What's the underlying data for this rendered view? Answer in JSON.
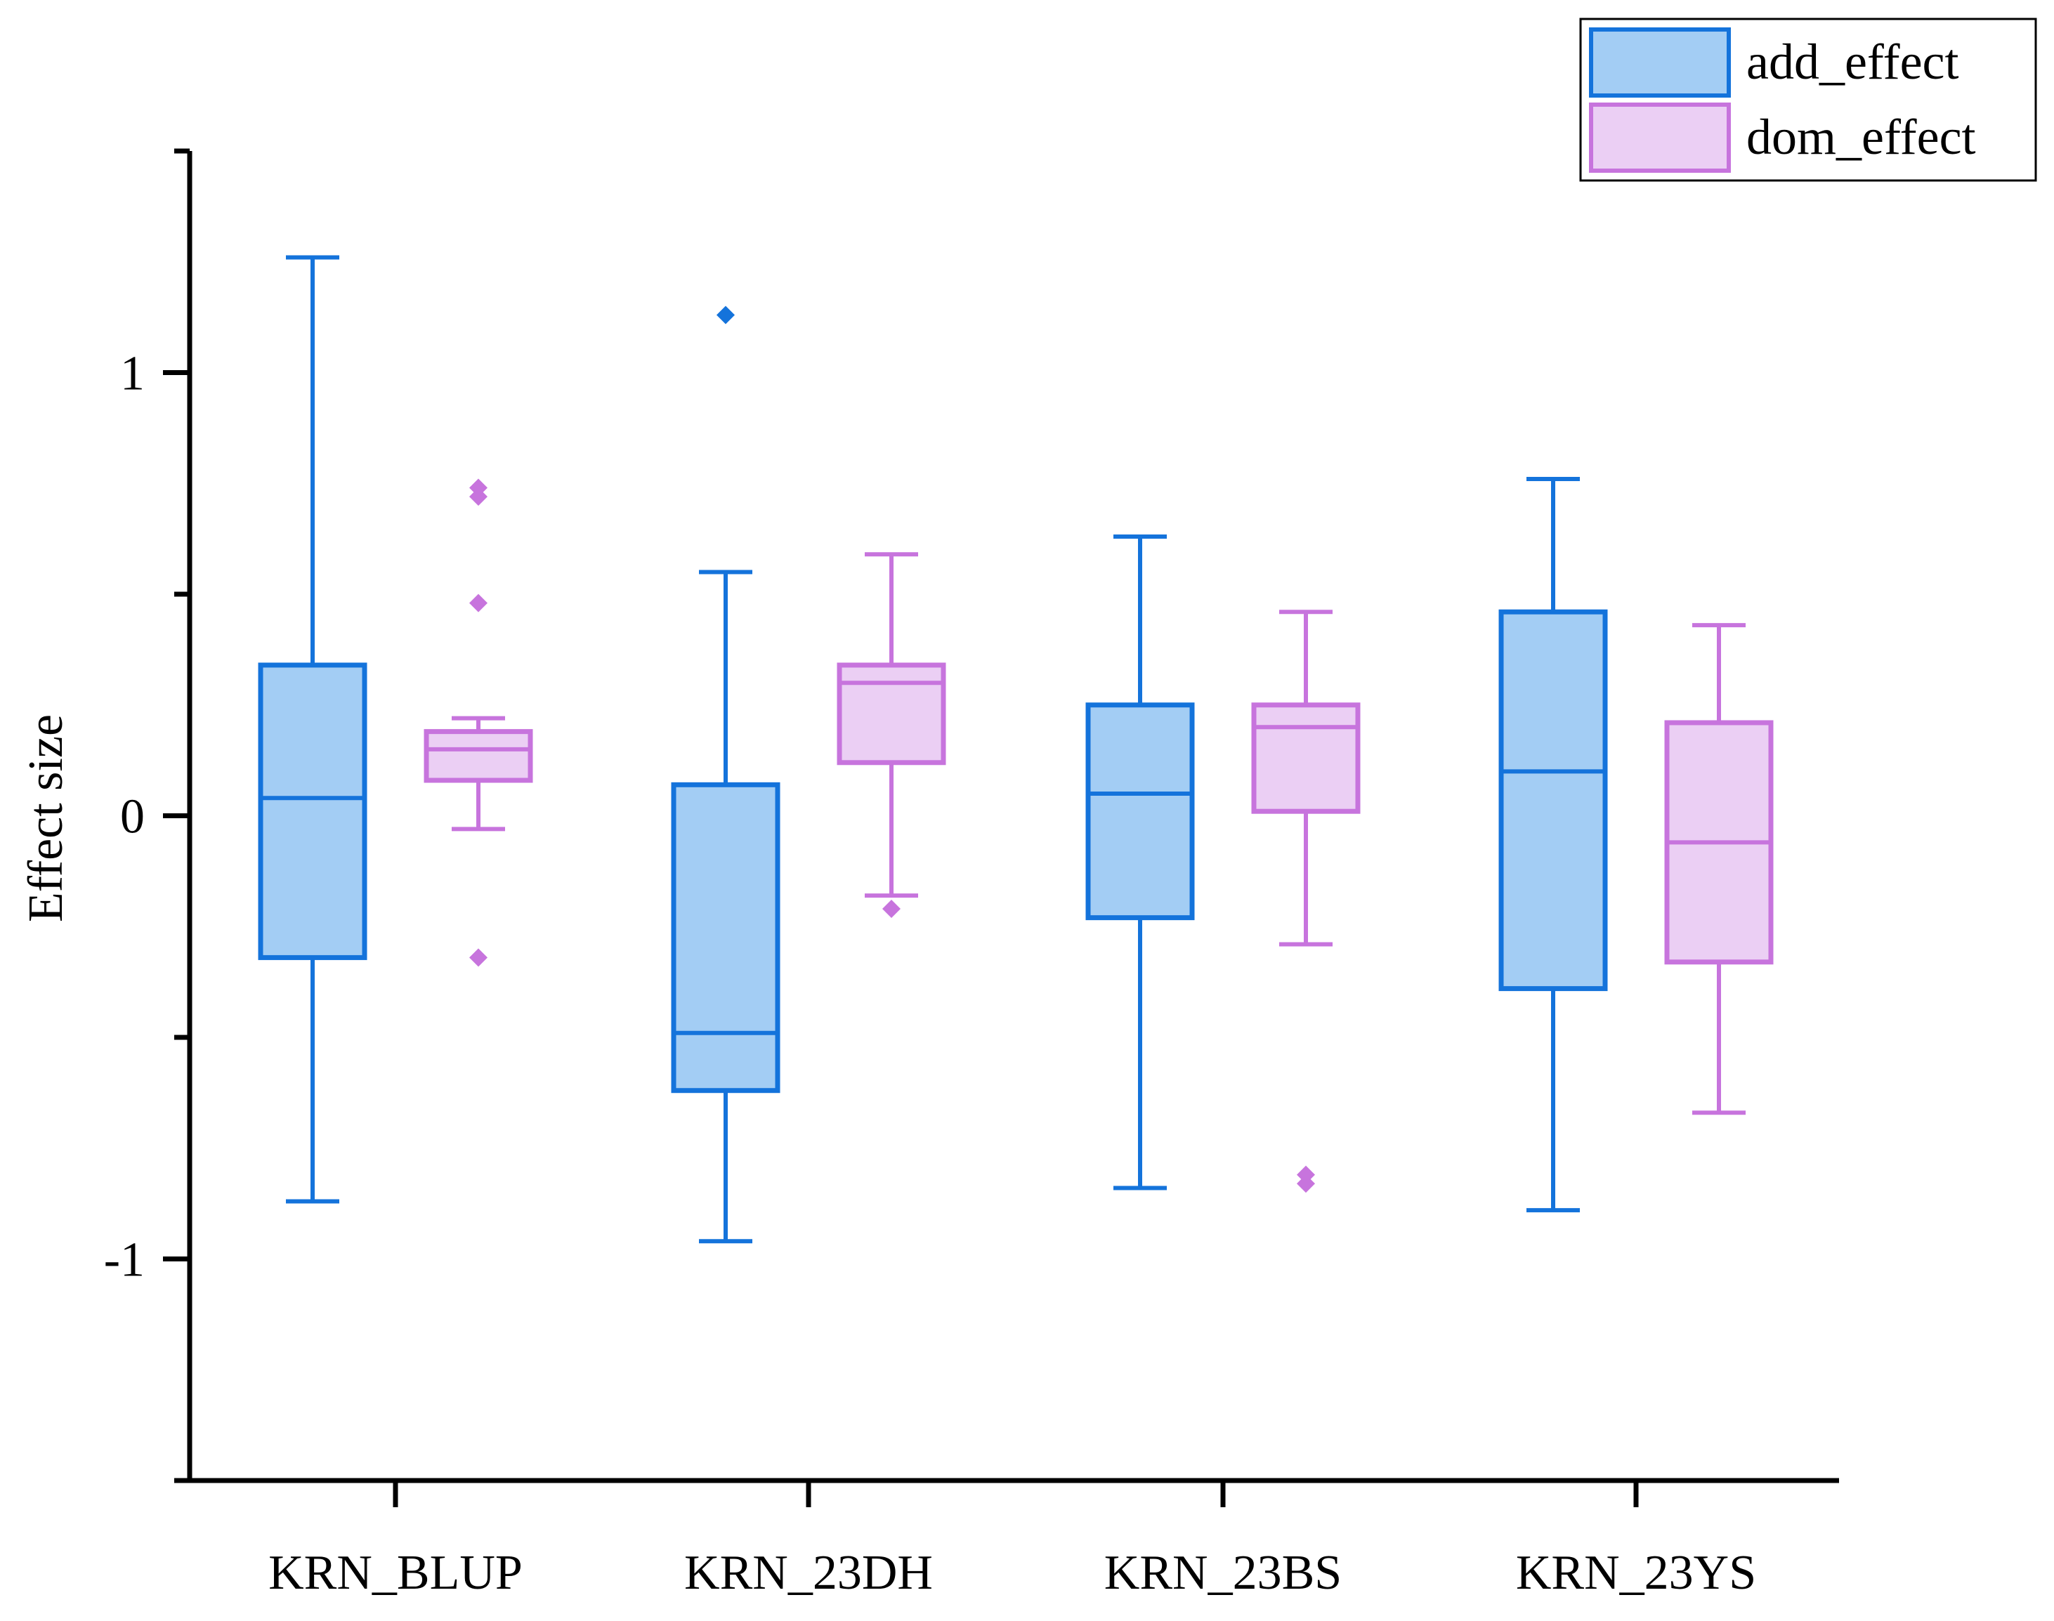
{
  "chart_data": {
    "type": "boxplot",
    "title": "",
    "xlabel": "",
    "ylabel": "Effect size",
    "ylim": [
      -1.5,
      1.5
    ],
    "yticks": [
      -1,
      0,
      1
    ],
    "ytick_labels": [
      "-1",
      "0",
      "1"
    ],
    "minor_yticks": [
      -1.5,
      -0.5,
      0.5,
      1.5
    ],
    "categories": [
      "KRN_BLUP",
      "KRN_23DH",
      "KRN_23BS",
      "KRN_23YS"
    ],
    "grid": false,
    "legend_position": "top-right",
    "series": [
      {
        "name": "add_effect",
        "color": "#1473db",
        "fill": "#a3cdf4",
        "boxes": [
          {
            "whisker_low": -0.87,
            "q1": -0.32,
            "median": 0.04,
            "q3": 0.34,
            "whisker_high": 1.26,
            "outliers": []
          },
          {
            "whisker_low": -0.96,
            "q1": -0.62,
            "median": -0.49,
            "q3": 0.07,
            "whisker_high": 0.55,
            "outliers": [
              1.13
            ]
          },
          {
            "whisker_low": -0.84,
            "q1": -0.23,
            "median": 0.05,
            "q3": 0.25,
            "whisker_high": 0.63,
            "outliers": []
          },
          {
            "whisker_low": -0.89,
            "q1": -0.39,
            "median": 0.1,
            "q3": 0.46,
            "whisker_high": 0.76,
            "outliers": []
          }
        ]
      },
      {
        "name": "dom_effect",
        "color": "#c774dd",
        "fill": "#ebcff4",
        "boxes": [
          {
            "whisker_low": -0.03,
            "q1": 0.08,
            "median": 0.15,
            "q3": 0.19,
            "whisker_high": 0.22,
            "outliers": [
              0.74,
              0.72,
              0.48,
              -0.32
            ]
          },
          {
            "whisker_low": -0.18,
            "q1": 0.12,
            "median": 0.3,
            "q3": 0.34,
            "whisker_high": 0.59,
            "outliers": [
              -0.21
            ]
          },
          {
            "whisker_low": -0.29,
            "q1": 0.01,
            "median": 0.2,
            "q3": 0.25,
            "whisker_high": 0.46,
            "outliers": [
              -0.81,
              -0.83
            ]
          },
          {
            "whisker_low": -0.67,
            "q1": -0.33,
            "median": -0.06,
            "q3": 0.21,
            "whisker_high": 0.43,
            "outliers": []
          }
        ]
      }
    ]
  }
}
